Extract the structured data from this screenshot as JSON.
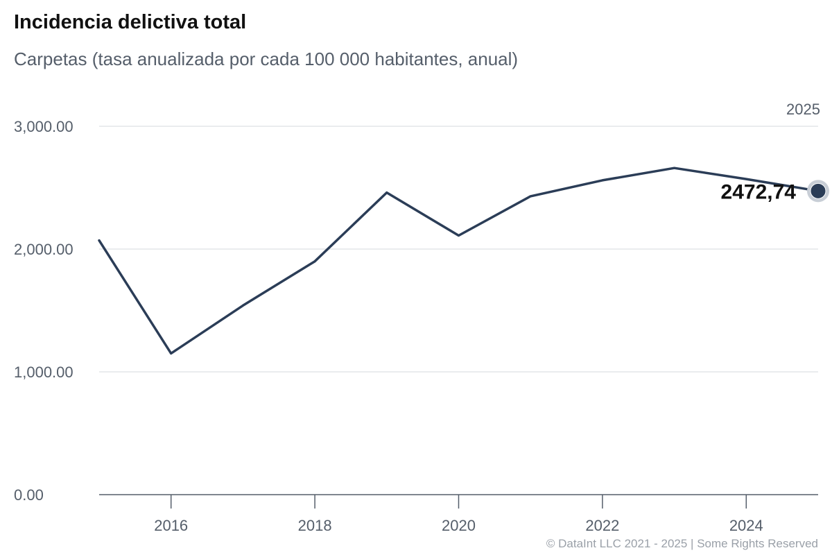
{
  "chart_data": {
    "type": "line",
    "title": "Incidencia delictiva total",
    "subtitle": "Carpetas (tasa anualizada por cada 100 000 habitantes, anual)",
    "x": [
      2015,
      2016,
      2017,
      2018,
      2019,
      2020,
      2021,
      2022,
      2023,
      2024,
      2025
    ],
    "series": [
      {
        "values": [
          2070,
          1150,
          1540,
          1900,
          2460,
          2110,
          2430,
          2560,
          2660,
          2570,
          2472.74
        ],
        "color": "#2b3d57"
      }
    ],
    "xlim": [
      2015,
      2025
    ],
    "ylim": [
      0,
      3000
    ],
    "yticks": [
      0,
      1000,
      2000,
      3000
    ],
    "ytick_labels": [
      "0.00",
      "1,000.00",
      "2,000.00",
      "3,000.00"
    ],
    "xticks": [
      2016,
      2018,
      2020,
      2022,
      2024
    ],
    "xtick_labels": [
      "2016",
      "2018",
      "2020",
      "2022",
      "2024"
    ],
    "last_point": {
      "x": 2025,
      "label": "2472,74",
      "period": "2025"
    },
    "grid": true,
    "legend": "none"
  },
  "footer": "© DataInt LLC 2021 - 2025 | Some Rights Reserved"
}
